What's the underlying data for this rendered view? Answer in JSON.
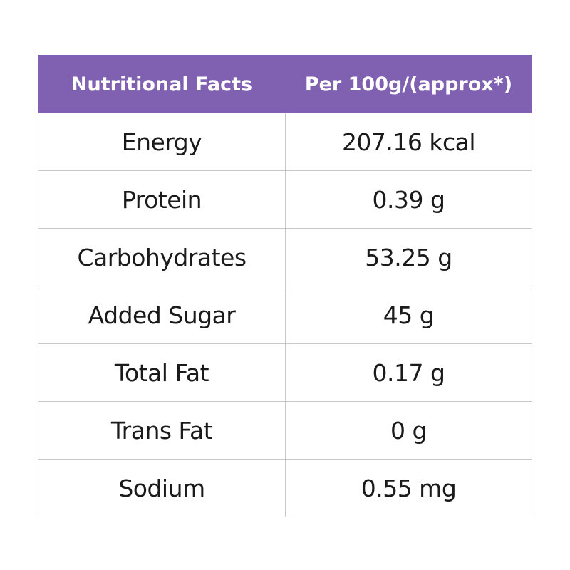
{
  "table": {
    "header": {
      "col1": "Nutritional Facts",
      "col2": "Per 100g/(approx*)"
    },
    "rows": [
      {
        "name": "Energy",
        "value": "207.16 kcal"
      },
      {
        "name": "Protein",
        "value": "0.39 g"
      },
      {
        "name": "Carbohydrates",
        "value": "53.25 g"
      },
      {
        "name": "Added Sugar",
        "value": "45 g"
      },
      {
        "name": "Total Fat",
        "value": "0.17 g"
      },
      {
        "name": "Trans Fat",
        "value": "0 g"
      },
      {
        "name": "Sodium",
        "value": "0.55 mg"
      }
    ]
  },
  "colors": {
    "header_background": "#7f60b1",
    "header_text": "#ffffff",
    "body_text": "#1a1a1a",
    "border": "#c8c8c8"
  }
}
